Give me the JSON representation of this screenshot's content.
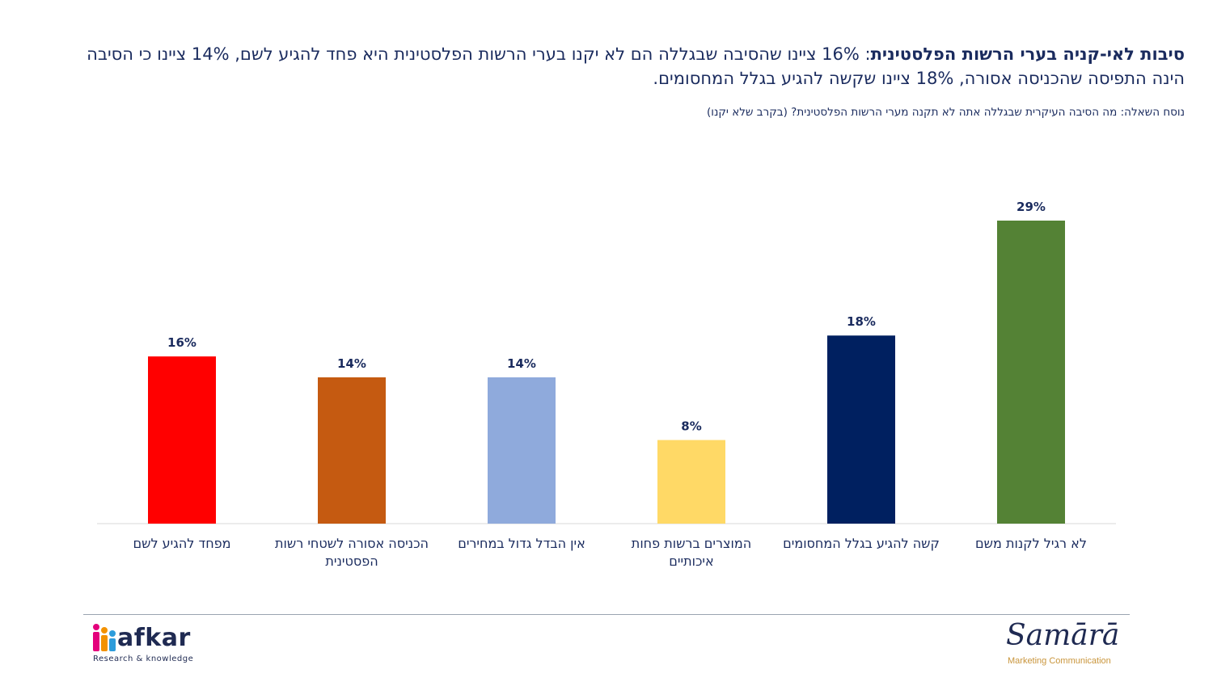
{
  "header": {
    "title_lead": "סיבות לאי-קניה בערי הרשות הפלסטינית",
    "title_rest": ": 16% ציינו שהסיבה שבגללה הם לא יקנו בערי הרשות הפלסטינית היא פחד להגיע לשם,  14% ציינו כי הסיבה הינה התפיסה שהכניסה אסורה, 18% ציינו שקשה להגיע בגלל המחסומים.",
    "question": "נוסח השאלה: מה הסיבה העיקרית שבגללה אתה לא תקנה מערי הרשות הפלסטינית? (בקרב שלא יקנו)"
  },
  "chart_data": {
    "type": "bar",
    "categories": [
      "מפחד להגיע לשם",
      "הכניסה אסורה לשטחי רשות הפסטינית",
      "אין הבדל גדול במחירים",
      "המוצרים ברשות פחות איכותיים",
      "קשה להגיע בגלל המחסומים",
      "לא רגיל לקנות משם"
    ],
    "values": [
      16,
      14,
      14,
      8,
      18,
      29
    ],
    "value_labels": [
      "16%",
      "14%",
      "14%",
      "8%",
      "18%",
      "29%"
    ],
    "colors": [
      "#ff0000",
      "#c55a11",
      "#8faadc",
      "#ffd966",
      "#002060",
      "#548235"
    ],
    "ylim": [
      0,
      29
    ],
    "grid": false,
    "legend": "none"
  },
  "footer": {
    "afkar_word": "afkar",
    "afkar_tagline": "Research & knowledge",
    "samara_word": "Samārā",
    "samara_tagline": "Marketing Communication"
  }
}
